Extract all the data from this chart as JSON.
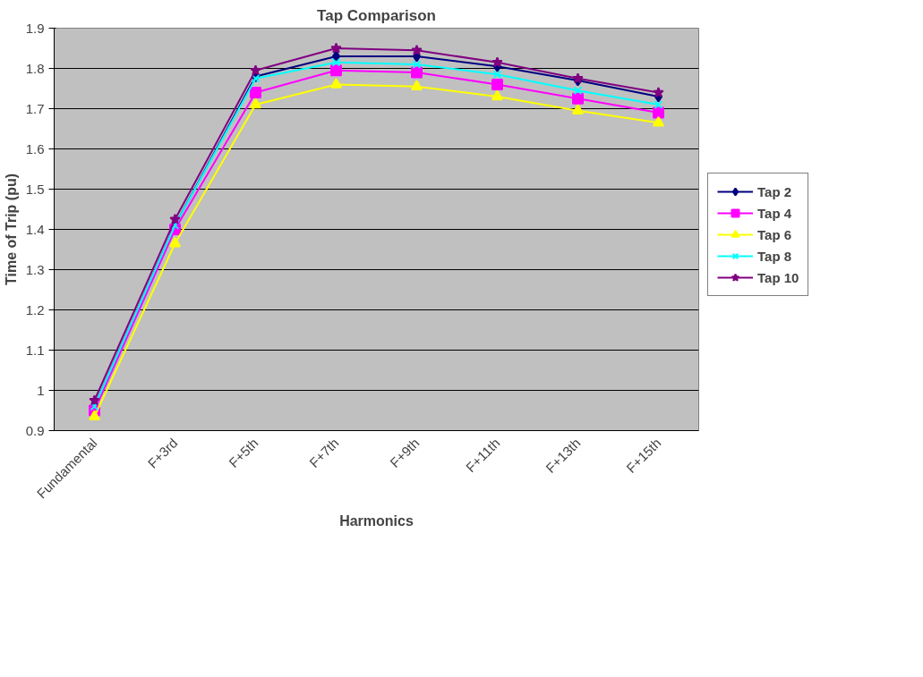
{
  "chart_data": {
    "type": "line",
    "title": "Tap Comparison",
    "xlabel": "Harmonics",
    "ylabel": "Time of Trip (pu)",
    "categories": [
      "Fundamental",
      "F+3rd",
      "F+5th",
      "F+7th",
      "F+9th",
      "F+11th",
      "F+13th",
      "F+15th"
    ],
    "ylim": [
      0.9,
      1.9
    ],
    "yticks": [
      {
        "value": 0.9,
        "label": "0.9"
      },
      {
        "value": 1.0,
        "label": "1"
      },
      1.1,
      1.2,
      1.3,
      1.4,
      1.5,
      1.6,
      1.7,
      1.8,
      1.9
    ],
    "grid": "y",
    "legend": "right",
    "series": [
      {
        "name": "Tap 2",
        "color": "#000080",
        "marker": "diamond",
        "values": [
          0.96,
          1.41,
          1.78,
          1.83,
          1.83,
          1.805,
          1.77,
          1.73
        ]
      },
      {
        "name": "Tap 4",
        "color": "#ff00ff",
        "marker": "square",
        "values": [
          0.95,
          1.4,
          1.74,
          1.795,
          1.79,
          1.76,
          1.725,
          1.69
        ]
      },
      {
        "name": "Tap 6",
        "color": "#ffff00",
        "marker": "triangle",
        "values": [
          0.935,
          1.365,
          1.71,
          1.76,
          1.755,
          1.73,
          1.695,
          1.665
        ]
      },
      {
        "name": "Tap 8",
        "color": "#00ffff",
        "marker": "cross",
        "values": [
          0.96,
          1.41,
          1.775,
          1.815,
          1.81,
          1.785,
          1.745,
          1.71
        ]
      },
      {
        "name": "Tap 10",
        "color": "#800080",
        "marker": "star",
        "values": [
          0.975,
          1.425,
          1.795,
          1.85,
          1.845,
          1.815,
          1.775,
          1.74
        ]
      }
    ]
  }
}
